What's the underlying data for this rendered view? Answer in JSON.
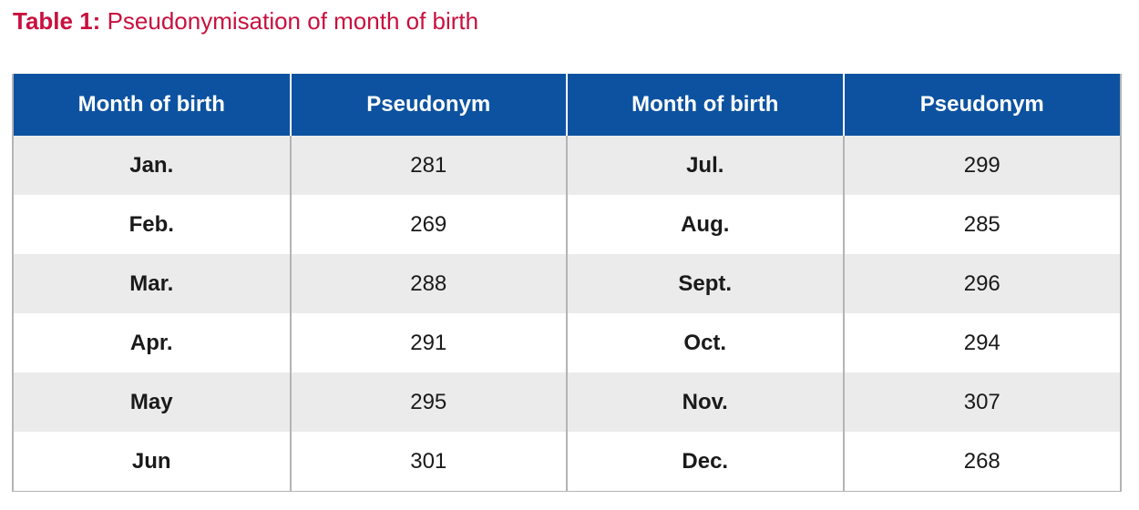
{
  "caption": {
    "label": "Table 1:",
    "title": "Pseudonymisation of month of birth"
  },
  "table": {
    "headers": [
      "Month of birth",
      "Pseudonym",
      "Month of birth",
      "Pseudonym"
    ],
    "rows": [
      [
        "Jan.",
        "281",
        "Jul.",
        "299"
      ],
      [
        "Feb.",
        "269",
        "Aug.",
        "285"
      ],
      [
        "Mar.",
        "288",
        "Sept.",
        "296"
      ],
      [
        "Apr.",
        "291",
        "Oct.",
        "294"
      ],
      [
        "May",
        "295",
        "Nov.",
        "307"
      ],
      [
        "Jun",
        "301",
        "Dec.",
        "268"
      ]
    ]
  },
  "colors": {
    "caption": "#c8103e",
    "header_background": "#0c52a0",
    "header_text": "#ffffff",
    "row_stripe": "#ebebeb",
    "border": "#b4b4b4"
  }
}
